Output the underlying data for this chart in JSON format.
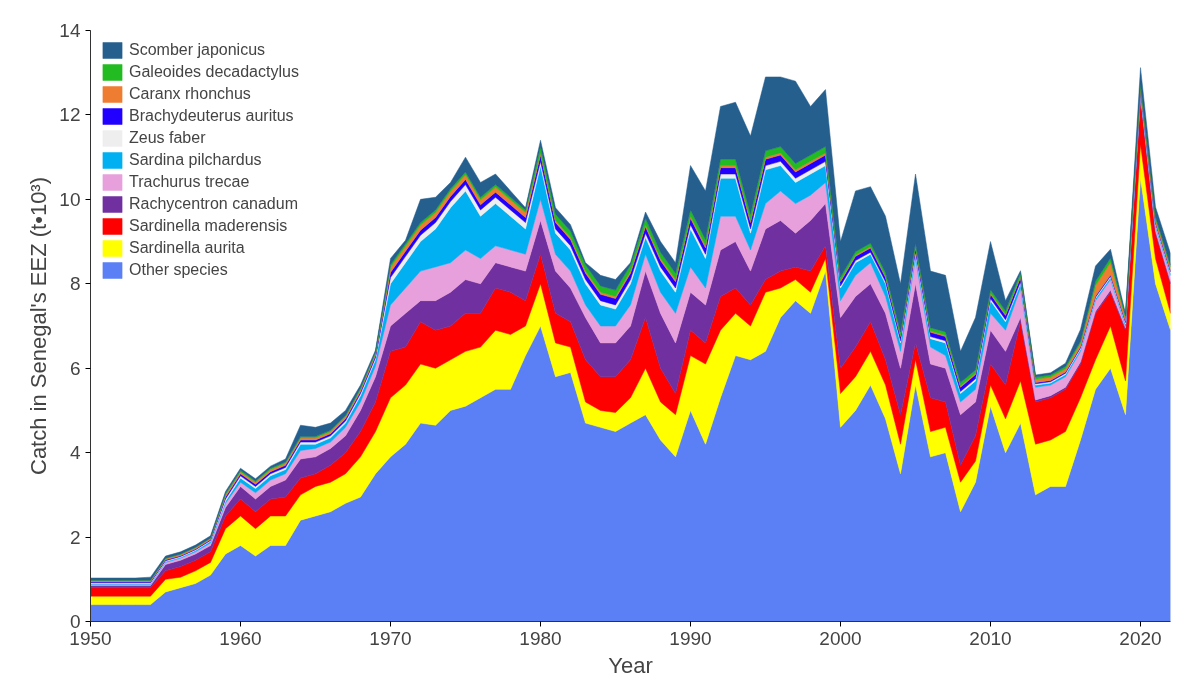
{
  "chart_data": {
    "type": "area",
    "stacked": true,
    "xlabel": "Year",
    "ylabel": "Catch in Senegal's EEZ (t•10³)",
    "x": [
      1950,
      1951,
      1952,
      1953,
      1954,
      1955,
      1956,
      1957,
      1958,
      1959,
      1960,
      1961,
      1962,
      1963,
      1964,
      1965,
      1966,
      1967,
      1968,
      1969,
      1970,
      1971,
      1972,
      1973,
      1974,
      1975,
      1976,
      1977,
      1978,
      1979,
      1980,
      1981,
      1982,
      1983,
      1984,
      1985,
      1986,
      1987,
      1988,
      1989,
      1990,
      1991,
      1992,
      1993,
      1994,
      1995,
      1996,
      1997,
      1998,
      1999,
      2000,
      2001,
      2002,
      2003,
      2004,
      2005,
      2006,
      2007,
      2008,
      2009,
      2010,
      2011,
      2012,
      2013,
      2014,
      2015,
      2016,
      2017,
      2018,
      2019,
      2020,
      2021,
      2022
    ],
    "xlim": [
      1950,
      2022
    ],
    "xticks": [
      1950,
      1960,
      1970,
      1980,
      1990,
      2000,
      2010,
      2020
    ],
    "ylim": [
      0,
      14
    ],
    "yticks": [
      0,
      2,
      4,
      6,
      8,
      10,
      12,
      14
    ],
    "grid": false,
    "legend": "top left",
    "series": [
      {
        "name": "Other species",
        "color": "#5b7ff5",
        "values": [
          0.4,
          0.4,
          0.4,
          0.4,
          0.4,
          0.7,
          0.8,
          0.9,
          1.1,
          1.6,
          1.8,
          1.55,
          1.8,
          1.8,
          2.4,
          2.5,
          2.6,
          2.8,
          2.95,
          3.5,
          3.9,
          4.2,
          4.7,
          4.65,
          5.0,
          5.1,
          5.3,
          5.5,
          5.5,
          6.3,
          7.0,
          5.8,
          5.9,
          4.7,
          4.6,
          4.5,
          4.7,
          4.9,
          4.3,
          3.9,
          5.0,
          4.2,
          5.3,
          6.3,
          6.2,
          6.4,
          7.2,
          7.6,
          7.3,
          8.3,
          4.6,
          5.0,
          5.6,
          4.8,
          3.5,
          5.6,
          3.9,
          4.0,
          2.6,
          3.3,
          5.1,
          4.0,
          4.7,
          3.0,
          3.2,
          3.2,
          4.3,
          5.5,
          6.0,
          4.9,
          10.5,
          8.0,
          6.9
        ]
      },
      {
        "name": "Sardinella aurita",
        "color": "#ffff00",
        "values": [
          0.2,
          0.2,
          0.2,
          0.2,
          0.2,
          0.3,
          0.25,
          0.3,
          0.3,
          0.6,
          0.7,
          0.65,
          0.7,
          0.7,
          0.6,
          0.7,
          0.7,
          0.7,
          0.95,
          1.0,
          1.4,
          1.4,
          1.4,
          1.35,
          1.2,
          1.3,
          1.2,
          1.4,
          1.3,
          0.7,
          1.0,
          0.8,
          0.6,
          0.5,
          0.4,
          0.45,
          0.6,
          1.1,
          0.9,
          1.0,
          1.3,
          1.9,
          1.6,
          1.0,
          0.8,
          1.4,
          0.7,
          0.5,
          0.5,
          0.3,
          0.8,
          0.8,
          0.8,
          0.8,
          0.7,
          0.6,
          0.6,
          0.6,
          0.7,
          0.5,
          0.5,
          0.8,
          1.0,
          1.2,
          1.1,
          1.3,
          1.0,
          0.7,
          1.0,
          0.8,
          0.8,
          0.6,
          0.4
        ]
      },
      {
        "name": "Sardinella maderensis",
        "color": "#ff0000",
        "values": [
          0.2,
          0.2,
          0.2,
          0.2,
          0.2,
          0.2,
          0.25,
          0.25,
          0.25,
          0.3,
          0.4,
          0.4,
          0.4,
          0.45,
          0.4,
          0.3,
          0.4,
          0.5,
          0.6,
          0.7,
          1.1,
          0.9,
          1.0,
          0.9,
          0.8,
          0.9,
          0.8,
          1.0,
          1.0,
          0.6,
          0.7,
          0.7,
          0.6,
          1.0,
          0.8,
          0.85,
          0.9,
          1.2,
          0.8,
          0.5,
          0.6,
          0.5,
          0.8,
          0.6,
          0.5,
          0.3,
          0.4,
          0.3,
          0.5,
          0.3,
          0.6,
          0.7,
          0.7,
          0.6,
          0.7,
          0.4,
          0.8,
          0.6,
          0.4,
          0.6,
          0.5,
          0.8,
          1.4,
          1.0,
          1.0,
          1.0,
          0.8,
          1.1,
          0.8,
          1.2,
          1.1,
          0.6,
          0.7
        ]
      },
      {
        "name": "Rachycentron canadum",
        "color": "#7030a0",
        "values": [
          0.05,
          0.05,
          0.05,
          0.05,
          0.05,
          0.15,
          0.15,
          0.15,
          0.15,
          0.2,
          0.3,
          0.3,
          0.3,
          0.4,
          0.45,
          0.4,
          0.4,
          0.4,
          0.5,
          0.6,
          0.6,
          0.8,
          0.5,
          0.7,
          0.8,
          0.8,
          0.7,
          0.6,
          0.6,
          0.7,
          0.8,
          1.0,
          0.8,
          1.0,
          0.8,
          0.8,
          0.8,
          1.1,
          1.3,
          1.2,
          0.9,
          0.9,
          1.1,
          1.1,
          0.8,
          1.2,
          1.2,
          0.8,
          1.2,
          1.0,
          1.2,
          1.2,
          0.9,
          1.1,
          1.1,
          1.4,
          0.8,
          0.8,
          1.2,
          0.8,
          0.8,
          0.8,
          0.1,
          0.05,
          0.05,
          0.05,
          0.05,
          0.05,
          0.05,
          0.05,
          0.05,
          0.05,
          0.05
        ]
      },
      {
        "name": "Trachurus trecae",
        "color": "#e8a0dc",
        "values": [
          0.03,
          0.03,
          0.03,
          0.03,
          0.03,
          0.05,
          0.05,
          0.05,
          0.06,
          0.1,
          0.1,
          0.15,
          0.15,
          0.15,
          0.2,
          0.2,
          0.15,
          0.2,
          0.2,
          0.25,
          0.5,
          0.6,
          0.7,
          0.8,
          0.7,
          0.7,
          0.6,
          0.4,
          0.4,
          0.4,
          0.5,
          0.4,
          0.4,
          0.3,
          0.4,
          0.4,
          0.5,
          0.4,
          0.5,
          0.7,
          0.6,
          0.4,
          0.8,
          0.6,
          0.5,
          0.6,
          0.7,
          0.7,
          0.6,
          0.5,
          0.4,
          0.5,
          0.5,
          0.4,
          0.4,
          0.6,
          0.4,
          0.3,
          0.3,
          0.3,
          0.4,
          0.5,
          0.7,
          0.3,
          0.25,
          0.25,
          0.25,
          0.25,
          0.25,
          0.05,
          0.05,
          0.1,
          0.15
        ]
      },
      {
        "name": "Sardina pilchardus",
        "color": "#00b0f0",
        "values": [
          0.02,
          0.02,
          0.02,
          0.02,
          0.02,
          0.02,
          0.02,
          0.03,
          0.04,
          0.05,
          0.1,
          0.1,
          0.1,
          0.1,
          0.15,
          0.1,
          0.1,
          0.1,
          0.15,
          0.15,
          0.5,
          0.6,
          0.7,
          0.9,
          1.3,
          1.4,
          1.0,
          1.0,
          0.8,
          0.6,
          0.8,
          0.5,
          0.5,
          0.5,
          0.5,
          0.4,
          0.5,
          0.4,
          0.5,
          0.5,
          0.9,
          0.7,
          0.9,
          0.9,
          0.4,
          0.8,
          0.6,
          0.5,
          0.5,
          0.4,
          0.3,
          0.3,
          0.2,
          0.3,
          0.2,
          0.1,
          0.2,
          0.3,
          0.2,
          0.2,
          0.3,
          0.2,
          0.1,
          0.05,
          0.05,
          0.05,
          0.05,
          0.05,
          0.05,
          0.05,
          0.05,
          0.05,
          0.05
        ]
      },
      {
        "name": "Zeus faber",
        "color": "#eeeeee",
        "values": [
          0.02,
          0.02,
          0.02,
          0.02,
          0.02,
          0.02,
          0.02,
          0.02,
          0.02,
          0.05,
          0.05,
          0.05,
          0.05,
          0.05,
          0.05,
          0.05,
          0.05,
          0.05,
          0.05,
          0.05,
          0.15,
          0.15,
          0.15,
          0.15,
          0.15,
          0.15,
          0.15,
          0.15,
          0.15,
          0.15,
          0.1,
          0.1,
          0.1,
          0.1,
          0.1,
          0.1,
          0.1,
          0.1,
          0.1,
          0.1,
          0.1,
          0.1,
          0.1,
          0.1,
          0.1,
          0.1,
          0.1,
          0.1,
          0.1,
          0.1,
          0.05,
          0.05,
          0.05,
          0.05,
          0.05,
          0.05,
          0.05,
          0.05,
          0.05,
          0.05,
          0.05,
          0.05,
          0.05,
          0.03,
          0.03,
          0.03,
          0.03,
          0.03,
          0.03,
          0.03,
          0.03,
          0.03,
          0.03
        ]
      },
      {
        "name": "Brachydeuterus auritus",
        "color": "#2200ff",
        "values": [
          0.02,
          0.02,
          0.02,
          0.02,
          0.02,
          0.02,
          0.02,
          0.02,
          0.02,
          0.05,
          0.05,
          0.05,
          0.05,
          0.05,
          0.05,
          0.05,
          0.05,
          0.05,
          0.05,
          0.05,
          0.12,
          0.12,
          0.12,
          0.12,
          0.12,
          0.12,
          0.12,
          0.12,
          0.12,
          0.12,
          0.15,
          0.15,
          0.15,
          0.15,
          0.15,
          0.15,
          0.15,
          0.15,
          0.15,
          0.15,
          0.15,
          0.15,
          0.15,
          0.15,
          0.15,
          0.15,
          0.15,
          0.15,
          0.15,
          0.15,
          0.1,
          0.1,
          0.1,
          0.1,
          0.1,
          0.1,
          0.1,
          0.1,
          0.1,
          0.1,
          0.1,
          0.1,
          0.1,
          0.03,
          0.03,
          0.03,
          0.03,
          0.03,
          0.03,
          0.03,
          0.03,
          0.03,
          0.03
        ]
      },
      {
        "name": "Caranx rhonchus",
        "color": "#ee7d31",
        "values": [
          0.03,
          0.03,
          0.03,
          0.03,
          0.03,
          0.03,
          0.03,
          0.03,
          0.03,
          0.05,
          0.05,
          0.05,
          0.05,
          0.05,
          0.05,
          0.05,
          0.05,
          0.05,
          0.05,
          0.05,
          0.12,
          0.12,
          0.12,
          0.12,
          0.12,
          0.12,
          0.12,
          0.12,
          0.12,
          0.12,
          0.05,
          0.05,
          0.05,
          0.05,
          0.05,
          0.05,
          0.05,
          0.05,
          0.05,
          0.05,
          0.05,
          0.05,
          0.05,
          0.05,
          0.05,
          0.05,
          0.05,
          0.05,
          0.05,
          0.05,
          0.03,
          0.03,
          0.03,
          0.03,
          0.03,
          0.03,
          0.03,
          0.03,
          0.03,
          0.03,
          0.03,
          0.03,
          0.03,
          0.08,
          0.08,
          0.08,
          0.08,
          0.25,
          0.3,
          0.08,
          0.08,
          0.08,
          0.08
        ]
      },
      {
        "name": "Galeoides decadactylus",
        "color": "#22bb22",
        "values": [
          0.01,
          0.01,
          0.01,
          0.01,
          0.01,
          0.01,
          0.01,
          0.01,
          0.01,
          0.03,
          0.03,
          0.03,
          0.03,
          0.03,
          0.03,
          0.03,
          0.03,
          0.03,
          0.03,
          0.03,
          0.06,
          0.06,
          0.06,
          0.06,
          0.06,
          0.06,
          0.06,
          0.06,
          0.06,
          0.06,
          0.15,
          0.15,
          0.15,
          0.15,
          0.15,
          0.15,
          0.15,
          0.15,
          0.15,
          0.15,
          0.15,
          0.15,
          0.15,
          0.15,
          0.15,
          0.15,
          0.15,
          0.15,
          0.15,
          0.15,
          0.08,
          0.08,
          0.08,
          0.08,
          0.08,
          0.08,
          0.08,
          0.08,
          0.08,
          0.08,
          0.08,
          0.08,
          0.08,
          0.05,
          0.05,
          0.05,
          0.05,
          0.1,
          0.1,
          0.05,
          0.05,
          0.05,
          0.05
        ]
      },
      {
        "name": "Scomber japonicus",
        "color": "#245f8e",
        "values": [
          0.05,
          0.05,
          0.05,
          0.05,
          0.07,
          0.05,
          0.05,
          0.05,
          0.05,
          0.05,
          0.05,
          0.05,
          0.05,
          0.07,
          0.27,
          0.22,
          0.17,
          0.12,
          0.07,
          0.05,
          0.15,
          0.08,
          0.55,
          0.3,
          0.15,
          0.35,
          0.35,
          0.25,
          0.15,
          0.05,
          0.15,
          0.15,
          0.15,
          0.05,
          0.25,
          0.25,
          0.05,
          0.15,
          0.25,
          0.25,
          1.05,
          1.15,
          1.25,
          1.35,
          1.85,
          1.75,
          1.65,
          1.95,
          1.15,
          1.35,
          0.84,
          1.44,
          1.34,
          1.34,
          1.14,
          1.64,
          1.34,
          1.34,
          0.74,
          1.24,
          1.14,
          0.24,
          0.05,
          0.05,
          0.05,
          0.08,
          0.28,
          0.36,
          0.21,
          0.05,
          0.38,
          0.23,
          0.28
        ]
      }
    ]
  }
}
